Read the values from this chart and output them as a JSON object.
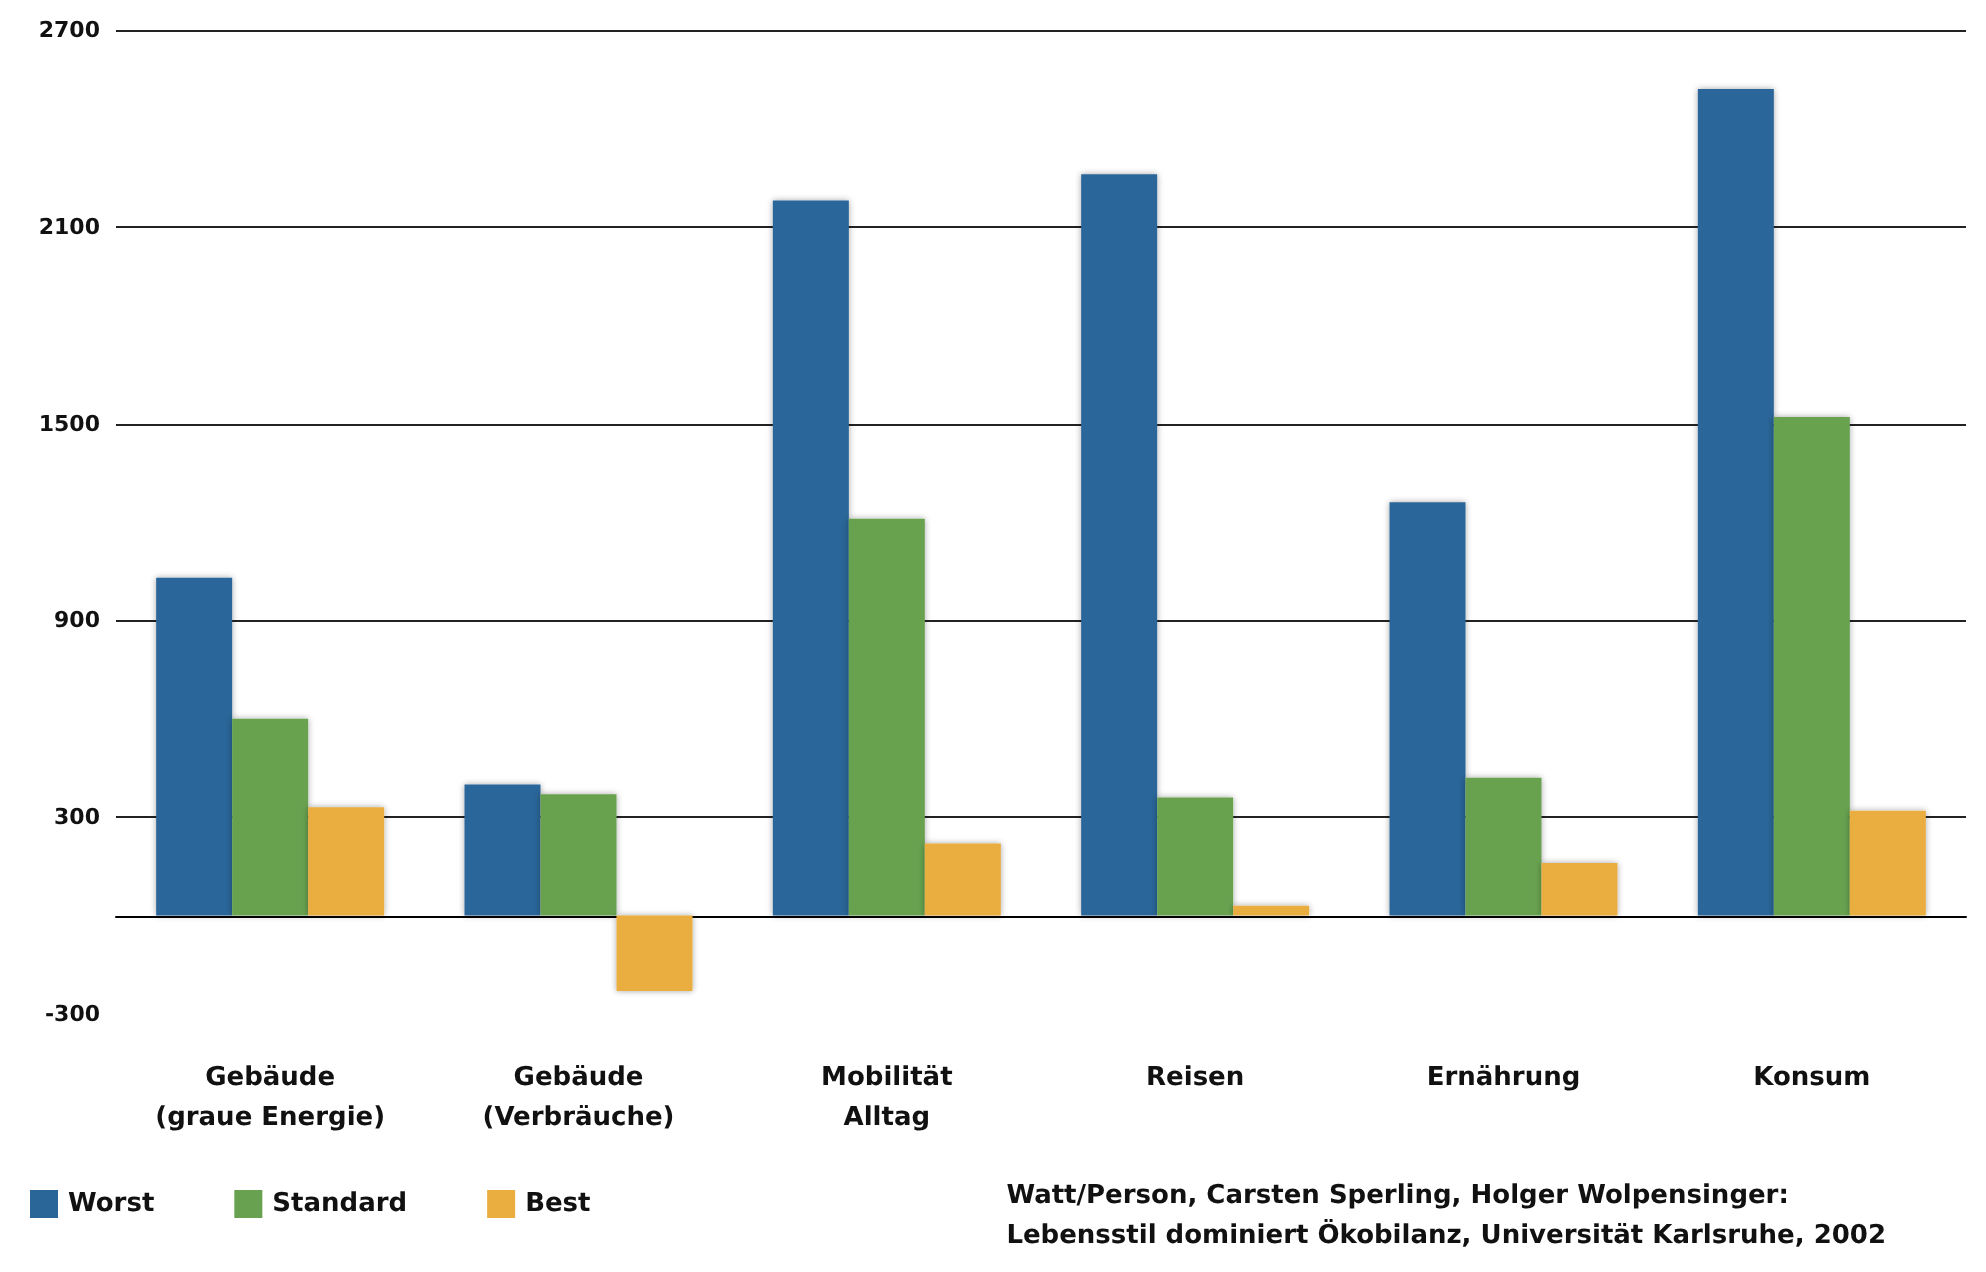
{
  "chart_data": {
    "type": "bar",
    "categories": [
      "Gebäude\n(graue Energie)",
      "Gebäude\n(Verbräuche)",
      "Mobilität\nAlltag",
      "Reisen",
      "Ernährung",
      "Konsum"
    ],
    "series": [
      {
        "name": "Worst",
        "color": "#2b6699",
        "values": [
          1030,
          400,
          2180,
          2260,
          1260,
          2520
        ]
      },
      {
        "name": "Standard",
        "color": "#68a250",
        "values": [
          600,
          370,
          1210,
          360,
          420,
          1520
        ]
      },
      {
        "name": "Best",
        "color": "#eaad40",
        "values": [
          330,
          -230,
          220,
          30,
          160,
          320
        ]
      }
    ],
    "ylim": [
      -300,
      2700
    ],
    "yticks": [
      -300,
      300,
      900,
      1500,
      2100,
      2700
    ],
    "grid": "y",
    "legend": "bottom left",
    "annotations": [
      "Watt/Person, Carsten Sperling, Holger Wolpensinger:\nLebensstil dominiert Ökobilanz, Universität Karlsruhe, 2002"
    ]
  }
}
